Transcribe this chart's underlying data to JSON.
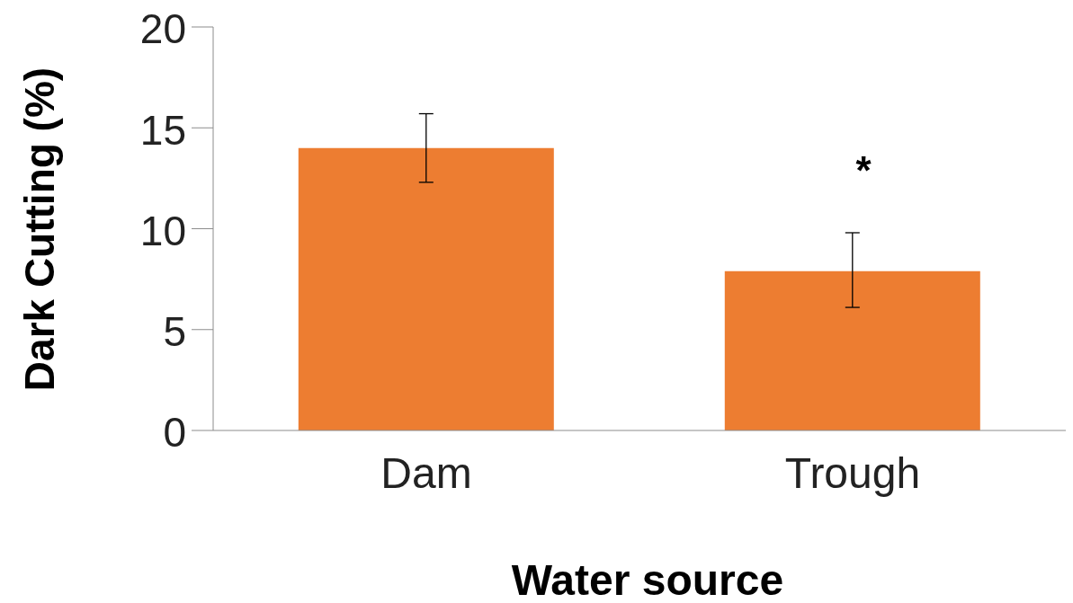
{
  "chart_data": {
    "type": "bar",
    "xlabel": "Water source",
    "ylabel": "Dark Cutting (%)",
    "categories": [
      "Dam",
      "Trough"
    ],
    "values": [
      14,
      7.9
    ],
    "errors": [
      [
        12.3,
        15.7
      ],
      [
        6.1,
        9.8
      ]
    ],
    "color": "#ed7d31",
    "ylim": [
      0,
      20
    ],
    "yticks": [
      0,
      5,
      10,
      15,
      20
    ],
    "grid": false,
    "annotations": [
      "*"
    ]
  }
}
